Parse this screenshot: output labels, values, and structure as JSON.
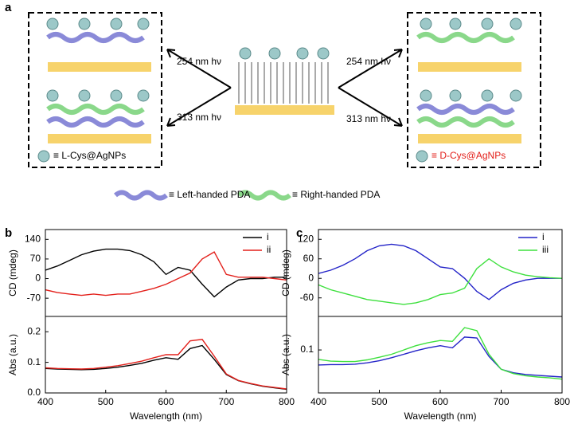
{
  "panel_labels": [
    "a",
    "b",
    "c"
  ],
  "diagram": {
    "left_upper_arrow": "254 nm hν",
    "left_lower_arrow": "313 nm hν",
    "right_upper_arrow": "254 nm hν",
    "right_lower_arrow": "313 nm hν",
    "left_legend": "≡ L-Cys@AgNPs",
    "right_legend": "≡ D-Cys@AgNPs",
    "left_handed": "≡ Left-handed PDA",
    "right_handed": "≡ Right-handed PDA"
  },
  "chart_data": [
    {
      "type": "line",
      "ylabel": "CD (mdeg)",
      "legend": "upper right",
      "x": [
        400,
        420,
        440,
        460,
        480,
        500,
        520,
        540,
        560,
        580,
        600,
        620,
        640,
        660,
        680,
        700,
        720,
        740,
        760,
        780,
        800
      ],
      "xlim": [
        400,
        800
      ],
      "ylim": [
        -135,
        175
      ],
      "yticks": [
        140,
        70,
        0,
        -70
      ],
      "series": [
        {
          "name": "i",
          "color": "#000000",
          "values": [
            30,
            45,
            65,
            85,
            98,
            105,
            105,
            100,
            85,
            60,
            15,
            40,
            30,
            -20,
            -65,
            -30,
            -5,
            0,
            0,
            5,
            5
          ]
        },
        {
          "name": "ii",
          "color": "#e3201b",
          "values": [
            -40,
            -50,
            -55,
            -60,
            -55,
            -60,
            -55,
            -55,
            -45,
            -35,
            -20,
            0,
            20,
            70,
            95,
            15,
            5,
            5,
            5,
            0,
            -5
          ]
        }
      ]
    },
    {
      "type": "line",
      "ylabel": "Abs (a.u.)",
      "xlabel": "Wavelength (nm)",
      "x": [
        400,
        420,
        440,
        460,
        480,
        500,
        520,
        540,
        560,
        580,
        600,
        620,
        640,
        660,
        680,
        700,
        720,
        740,
        760,
        780,
        800
      ],
      "xlim": [
        400,
        800
      ],
      "xticks": [
        400,
        500,
        600,
        700,
        800
      ],
      "ylim": [
        0,
        0.25
      ],
      "yticks": [
        {
          "value": 0,
          "label": "0.0"
        },
        0.1,
        0.2
      ],
      "series": [
        {
          "name": "i",
          "color": "#000000",
          "values": [
            0.08,
            0.078,
            0.077,
            0.076,
            0.077,
            0.08,
            0.084,
            0.09,
            0.097,
            0.107,
            0.115,
            0.11,
            0.145,
            0.155,
            0.11,
            0.06,
            0.04,
            0.03,
            0.022,
            0.017,
            0.012
          ]
        },
        {
          "name": "ii",
          "color": "#e3201b",
          "values": [
            0.082,
            0.08,
            0.079,
            0.078,
            0.08,
            0.084,
            0.089,
            0.096,
            0.104,
            0.115,
            0.125,
            0.125,
            0.17,
            0.175,
            0.12,
            0.062,
            0.041,
            0.031,
            0.023,
            0.018,
            0.013
          ]
        }
      ]
    },
    {
      "type": "line",
      "ylabel": "CD (mdeg)",
      "legend": "upper right",
      "x": [
        400,
        420,
        440,
        460,
        480,
        500,
        520,
        540,
        560,
        580,
        600,
        620,
        640,
        660,
        680,
        700,
        720,
        740,
        760,
        780,
        800
      ],
      "xlim": [
        400,
        800
      ],
      "ylim": [
        -117,
        150
      ],
      "yticks": [
        120,
        60,
        0,
        -60
      ],
      "series": [
        {
          "name": "i",
          "color": "#2323c8",
          "values": [
            15,
            25,
            40,
            60,
            85,
            100,
            105,
            100,
            85,
            60,
            35,
            30,
            0,
            -40,
            -65,
            -35,
            -15,
            -5,
            0,
            0,
            0
          ]
        },
        {
          "name": "iii",
          "color": "#3ee03e",
          "values": [
            -20,
            -35,
            -45,
            -55,
            -65,
            -70,
            -75,
            -80,
            -75,
            -65,
            -50,
            -45,
            -30,
            30,
            60,
            35,
            20,
            10,
            5,
            2,
            0
          ]
        }
      ]
    },
    {
      "type": "line",
      "ylabel": "Abs (a.u.)",
      "xlabel": "Wavelength (nm)",
      "x": [
        400,
        420,
        440,
        460,
        480,
        500,
        520,
        540,
        560,
        580,
        600,
        620,
        640,
        660,
        680,
        700,
        720,
        740,
        760,
        780,
        800
      ],
      "xlim": [
        400,
        800
      ],
      "xticks": [
        400,
        500,
        600,
        700,
        800
      ],
      "ylim": [
        0,
        0.178
      ],
      "yticks": [
        0.1
      ],
      "series": [
        {
          "name": "i",
          "color": "#2323c8",
          "values": [
            0.065,
            0.066,
            0.066,
            0.067,
            0.07,
            0.075,
            0.082,
            0.09,
            0.098,
            0.105,
            0.11,
            0.105,
            0.13,
            0.128,
            0.085,
            0.055,
            0.047,
            0.043,
            0.041,
            0.039,
            0.037
          ]
        },
        {
          "name": "iii",
          "color": "#3ee03e",
          "values": [
            0.078,
            0.074,
            0.073,
            0.073,
            0.077,
            0.083,
            0.09,
            0.1,
            0.11,
            0.117,
            0.122,
            0.12,
            0.152,
            0.145,
            0.09,
            0.055,
            0.045,
            0.04,
            0.037,
            0.035,
            0.032
          ]
        }
      ]
    }
  ]
}
